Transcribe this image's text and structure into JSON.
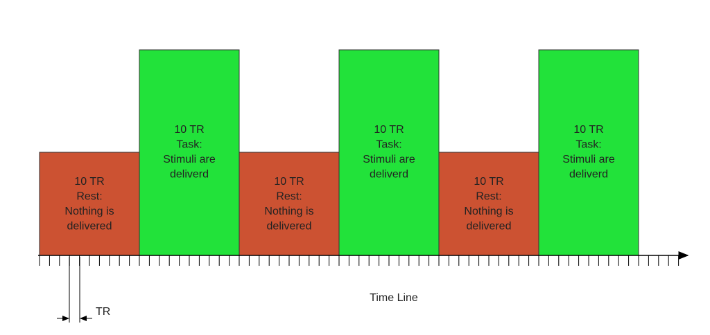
{
  "blocks": [
    {
      "lines": [
        "10 TR",
        "Rest:",
        "Nothing is",
        "delivered"
      ]
    },
    {
      "lines": [
        "10 TR",
        "Task:",
        "Stimuli are",
        "deliverd"
      ]
    },
    {
      "lines": [
        "10 TR",
        "Rest:",
        "Nothing is",
        "delivered"
      ]
    },
    {
      "lines": [
        "10 TR",
        "Task:",
        "Stimuli are",
        "deliverd"
      ]
    },
    {
      "lines": [
        "10 TR",
        "Rest:",
        "Nothing is",
        "delivered"
      ]
    },
    {
      "lines": [
        "10 TR",
        "Task:",
        "Stimuli are",
        "deliverd"
      ]
    }
  ],
  "timeline_label": "Time Line",
  "tr_label": "TR"
}
